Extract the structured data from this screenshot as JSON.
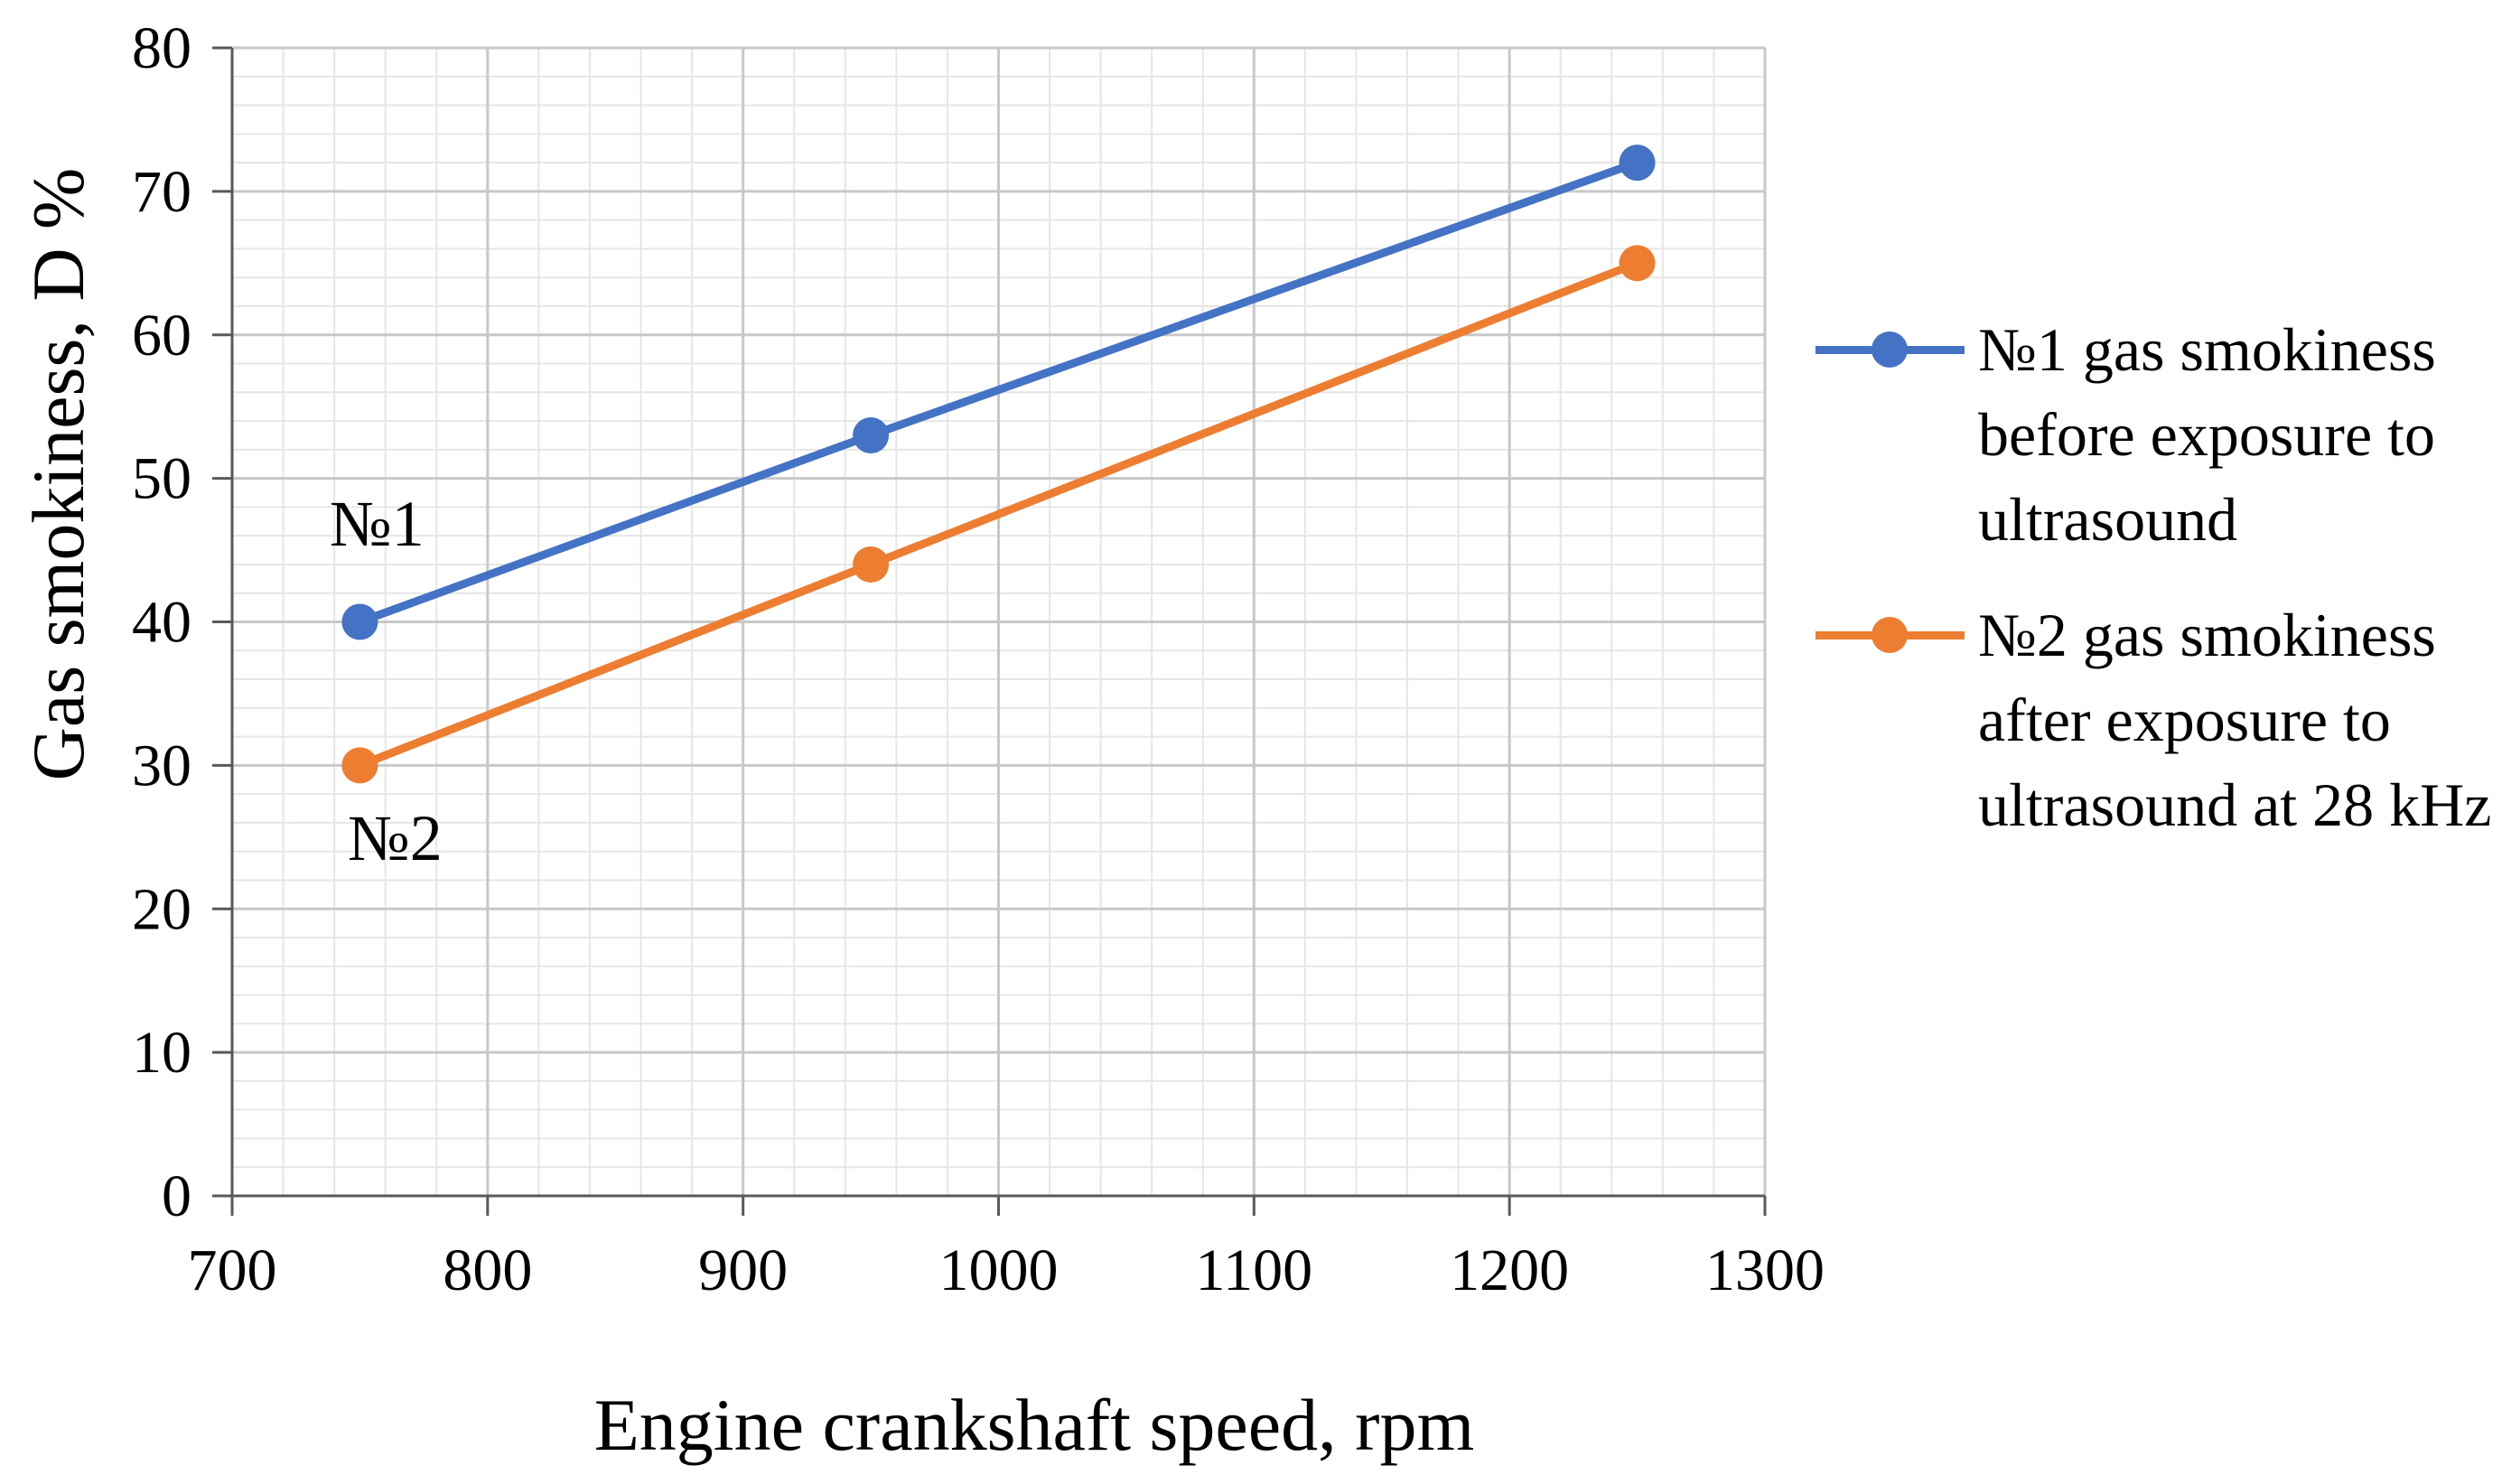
{
  "chart_data": {
    "type": "line",
    "title": "",
    "xlabel": "Engine crankshaft speed, rpm",
    "ylabel": "Gas smokiness, D %",
    "xlim": [
      700,
      1300
    ],
    "ylim": [
      0,
      80
    ],
    "xticks": [
      700,
      800,
      900,
      1000,
      1100,
      1200,
      1300
    ],
    "yticks": [
      0,
      10,
      20,
      30,
      40,
      50,
      60,
      70,
      80
    ],
    "x_minor_step": 20,
    "y_minor_step": 2,
    "grid": true,
    "legend_position": "right",
    "series": [
      {
        "name": "№1 gas smokiness before exposure to ultrasound",
        "color": "#4472C4",
        "x": [
          750,
          950,
          1250
        ],
        "y": [
          40,
          53,
          72
        ]
      },
      {
        "name": "№2 gas smokiness after exposure to ultrasound at 28 kHz",
        "color": "#ED7D31",
        "x": [
          750,
          950,
          1250
        ],
        "y": [
          30,
          44,
          65
        ]
      }
    ],
    "annotations": [
      {
        "text": "№1",
        "series": 0
      },
      {
        "text": "№2",
        "series": 1
      }
    ]
  }
}
